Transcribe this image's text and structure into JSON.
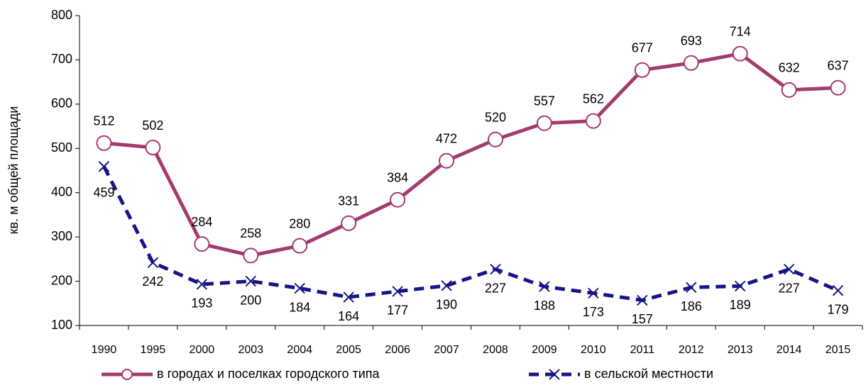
{
  "chart_data": {
    "type": "line",
    "y_label": "кв. м общей площади",
    "categories": [
      "1990",
      "1995",
      "2000",
      "2003",
      "2004",
      "2005",
      "2006",
      "2007",
      "2008",
      "2009",
      "2010",
      "2011",
      "2012",
      "2013",
      "2014",
      "2015"
    ],
    "series": [
      {
        "name": "в городах и поселках городского типа",
        "color": "#a23b6e",
        "marker": "circle",
        "dashed": false,
        "label_position": "above",
        "values": [
          512,
          502,
          284,
          258,
          280,
          331,
          384,
          472,
          520,
          557,
          562,
          677,
          693,
          714,
          632,
          637
        ]
      },
      {
        "name": "в сельской местности",
        "color": "#151589",
        "marker": "x",
        "dashed": true,
        "label_position": "below",
        "values": [
          459,
          242,
          193,
          200,
          184,
          164,
          177,
          190,
          227,
          188,
          173,
          157,
          186,
          189,
          227,
          179
        ]
      }
    ],
    "ylim": [
      100,
      800
    ],
    "yticks": [
      100,
      200,
      300,
      400,
      500,
      600,
      700,
      800
    ],
    "legend": "bottom"
  }
}
